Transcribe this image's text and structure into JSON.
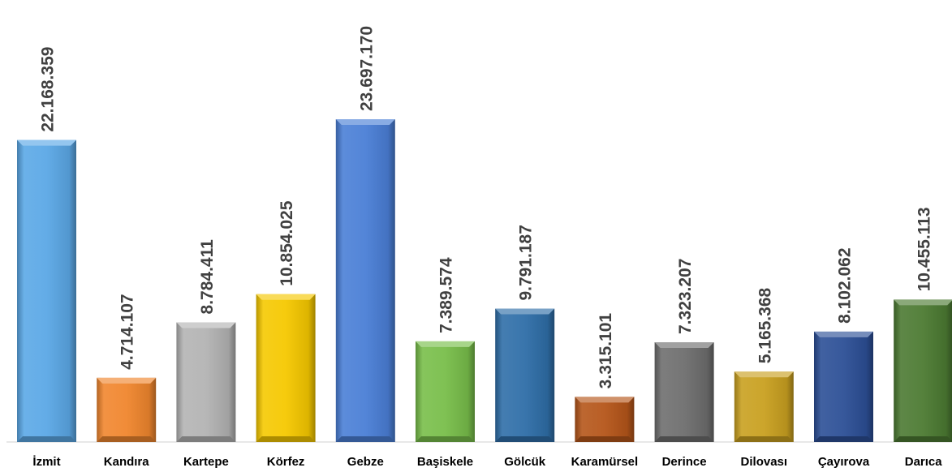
{
  "chart_data": {
    "type": "bar",
    "categories": [
      "İzmit",
      "Kandıra",
      "Kartepe",
      "Körfez",
      "Gebze",
      "Başiskele",
      "Gölcük",
      "Karamürsel",
      "Derince",
      "Dilovası",
      "Çayırova",
      "Darıca"
    ],
    "values": [
      22168359,
      4714107,
      8784411,
      10854025,
      23697170,
      7389574,
      9791187,
      3315101,
      7323207,
      5165368,
      8102062,
      10455113
    ],
    "value_labels": [
      "22.168.359",
      "4.714.107",
      "8.784.411",
      "10.854.025",
      "23.697.170",
      "7.389.574",
      "9.791.187",
      "3.315.101",
      "7.323.207",
      "5.165.368",
      "8.102.062",
      "10.455.113"
    ],
    "colors": [
      "#5BA8E6",
      "#F0862E",
      "#B3B3B3",
      "#F5C800",
      "#4A7FD6",
      "#78BE4A",
      "#2F6EA8",
      "#B5561A",
      "#6E6E6E",
      "#C9A020",
      "#2C4F96",
      "#4C7A32"
    ],
    "title": "",
    "xlabel": "",
    "ylabel": "",
    "ylim": [
      0,
      23697170
    ],
    "grid": false,
    "legend": "none"
  }
}
